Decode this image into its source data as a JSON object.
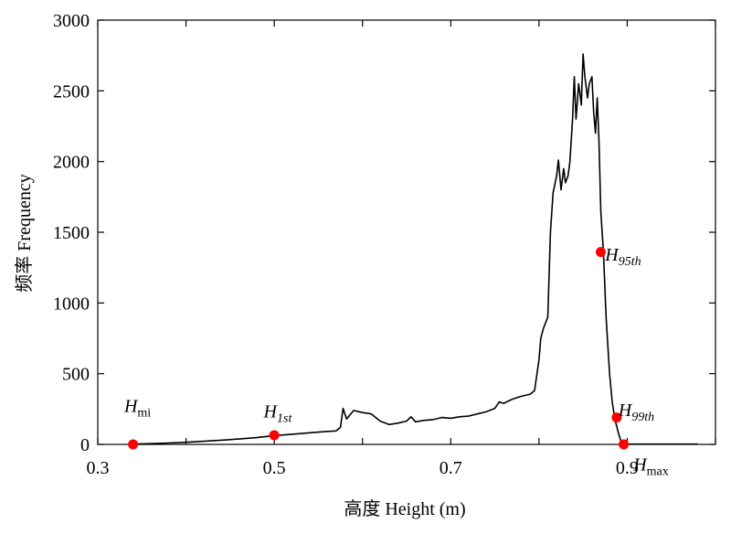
{
  "chart_data": {
    "type": "line",
    "xlabel": "高度 Height (m)",
    "ylabel": "频率 Frequency",
    "xlim": [
      0.3,
      1.0
    ],
    "ylim": [
      0,
      3000
    ],
    "x_ticks": [
      {
        "value": 0.3,
        "label": "0.3"
      },
      {
        "value": 0.5,
        "label": "0.5"
      },
      {
        "value": 0.7,
        "label": "0.7"
      },
      {
        "value": 0.9,
        "label": "0.9"
      }
    ],
    "y_ticks": [
      {
        "value": 0,
        "label": "0"
      },
      {
        "value": 500,
        "label": "500"
      },
      {
        "value": 1000,
        "label": "1000"
      },
      {
        "value": 1500,
        "label": "1500"
      },
      {
        "value": 2000,
        "label": "2000"
      },
      {
        "value": 2500,
        "label": "2500"
      },
      {
        "value": 3000,
        "label": "3000"
      }
    ],
    "grid": false,
    "line_color": "#000000",
    "marker_color": "#ff0000",
    "series": [
      {
        "points": [
          [
            0.34,
            2
          ],
          [
            0.36,
            5
          ],
          [
            0.38,
            10
          ],
          [
            0.4,
            15
          ],
          [
            0.42,
            22
          ],
          [
            0.44,
            30
          ],
          [
            0.46,
            38
          ],
          [
            0.48,
            48
          ],
          [
            0.5,
            62
          ],
          [
            0.52,
            72
          ],
          [
            0.54,
            82
          ],
          [
            0.56,
            92
          ],
          [
            0.57,
            95
          ],
          [
            0.575,
            120
          ],
          [
            0.578,
            255
          ],
          [
            0.582,
            180
          ],
          [
            0.59,
            240
          ],
          [
            0.6,
            225
          ],
          [
            0.61,
            215
          ],
          [
            0.62,
            165
          ],
          [
            0.63,
            140
          ],
          [
            0.64,
            150
          ],
          [
            0.65,
            165
          ],
          [
            0.655,
            195
          ],
          [
            0.66,
            160
          ],
          [
            0.67,
            170
          ],
          [
            0.68,
            175
          ],
          [
            0.69,
            190
          ],
          [
            0.7,
            185
          ],
          [
            0.71,
            195
          ],
          [
            0.72,
            200
          ],
          [
            0.73,
            215
          ],
          [
            0.74,
            230
          ],
          [
            0.75,
            255
          ],
          [
            0.755,
            300
          ],
          [
            0.76,
            290
          ],
          [
            0.77,
            320
          ],
          [
            0.78,
            340
          ],
          [
            0.79,
            355
          ],
          [
            0.795,
            380
          ],
          [
            0.8,
            600
          ],
          [
            0.802,
            750
          ],
          [
            0.805,
            820
          ],
          [
            0.81,
            900
          ],
          [
            0.813,
            1500
          ],
          [
            0.816,
            1780
          ],
          [
            0.82,
            1900
          ],
          [
            0.822,
            2010
          ],
          [
            0.825,
            1800
          ],
          [
            0.828,
            1950
          ],
          [
            0.83,
            1850
          ],
          [
            0.833,
            1900
          ],
          [
            0.835,
            2000
          ],
          [
            0.838,
            2300
          ],
          [
            0.84,
            2600
          ],
          [
            0.842,
            2300
          ],
          [
            0.845,
            2550
          ],
          [
            0.848,
            2400
          ],
          [
            0.85,
            2760
          ],
          [
            0.852,
            2600
          ],
          [
            0.855,
            2450
          ],
          [
            0.857,
            2550
          ],
          [
            0.86,
            2600
          ],
          [
            0.862,
            2350
          ],
          [
            0.864,
            2200
          ],
          [
            0.866,
            2450
          ],
          [
            0.868,
            2150
          ],
          [
            0.87,
            1650
          ],
          [
            0.873,
            1360
          ],
          [
            0.876,
            900
          ],
          [
            0.88,
            500
          ],
          [
            0.883,
            300
          ],
          [
            0.886,
            180
          ],
          [
            0.89,
            80
          ],
          [
            0.893,
            20
          ],
          [
            0.896,
            5
          ],
          [
            0.9,
            3
          ],
          [
            0.92,
            2
          ],
          [
            0.95,
            2
          ],
          [
            0.98,
            2
          ]
        ]
      }
    ],
    "markers": [
      {
        "x": 0.34,
        "y": 0
      },
      {
        "x": 0.5,
        "y": 65
      },
      {
        "x": 0.87,
        "y": 1360
      },
      {
        "x": 0.888,
        "y": 190
      },
      {
        "x": 0.896,
        "y": 0
      }
    ],
    "annotations": [
      {
        "base": "H",
        "sub": "mi",
        "sub_italic": false,
        "x": 0.33,
        "y": 230
      },
      {
        "base": "H",
        "sub": "1st",
        "sub_italic": true,
        "x": 0.488,
        "y": 190
      },
      {
        "base": "H",
        "sub": "95th",
        "sub_italic": true,
        "x": 0.875,
        "y": 1300
      },
      {
        "base": "H",
        "sub": "99th",
        "sub_italic": true,
        "x": 0.89,
        "y": 200
      },
      {
        "base": "H",
        "sub": "max",
        "sub_italic": false,
        "x": 0.907,
        "y": -185
      }
    ]
  }
}
